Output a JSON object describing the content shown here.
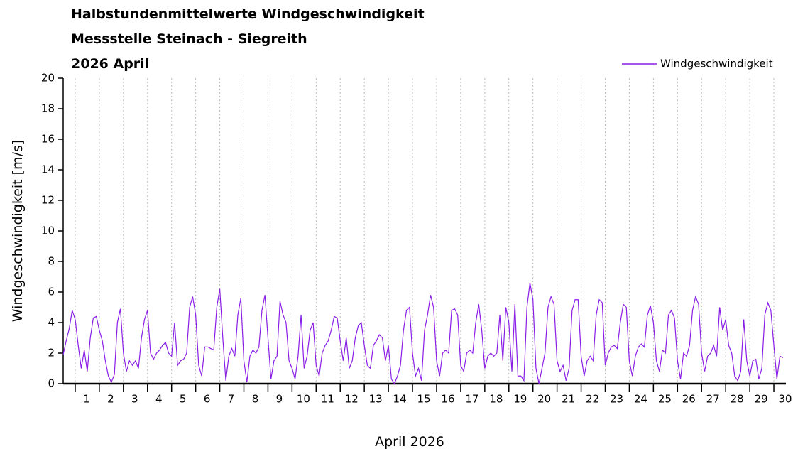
{
  "chart_data": {
    "type": "line",
    "title": [
      "Halbstundenmittelwerte Windgeschwindigkeit",
      "Messstelle Steinach - Siegreith",
      "2026 April"
    ],
    "xlabel": "April 2026",
    "ylabel": "Windgeschwindigkeit [m/s]",
    "xlim": [
      0.5,
      30.5
    ],
    "xticks": [
      1,
      2,
      3,
      4,
      5,
      6,
      7,
      8,
      9,
      10,
      11,
      12,
      13,
      14,
      15,
      16,
      17,
      18,
      19,
      20,
      21,
      22,
      23,
      24,
      25,
      26,
      27,
      28,
      29,
      30
    ],
    "ylim": [
      0,
      20
    ],
    "yticks": [
      0,
      2,
      4,
      6,
      8,
      10,
      12,
      14,
      16,
      18,
      20
    ],
    "grid": true,
    "legend": "upper right",
    "x": [
      0.5,
      0.625,
      0.75,
      0.875,
      1,
      1.125,
      1.25,
      1.375,
      1.5,
      1.625,
      1.75,
      1.875,
      2,
      2.125,
      2.25,
      2.375,
      2.5,
      2.625,
      2.75,
      2.875,
      3,
      3.125,
      3.25,
      3.375,
      3.5,
      3.625,
      3.75,
      3.875,
      4,
      4.125,
      4.25,
      4.375,
      4.5,
      4.625,
      4.75,
      4.875,
      5,
      5.125,
      5.25,
      5.375,
      5.5,
      5.625,
      5.75,
      5.875,
      6,
      6.125,
      6.25,
      6.375,
      6.5,
      6.625,
      6.75,
      6.875,
      7,
      7.125,
      7.25,
      7.375,
      7.5,
      7.625,
      7.75,
      7.875,
      8,
      8.125,
      8.25,
      8.375,
      8.5,
      8.625,
      8.75,
      8.875,
      9,
      9.125,
      9.25,
      9.375,
      9.5,
      9.625,
      9.75,
      9.875,
      10,
      10.125,
      10.25,
      10.375,
      10.5,
      10.625,
      10.75,
      10.875,
      11,
      11.125,
      11.25,
      11.375,
      11.5,
      11.625,
      11.75,
      11.875,
      12,
      12.125,
      12.25,
      12.375,
      12.5,
      12.625,
      12.75,
      12.875,
      13,
      13.125,
      13.25,
      13.375,
      13.5,
      13.625,
      13.75,
      13.875,
      14,
      14.125,
      14.25,
      14.375,
      14.5,
      14.625,
      14.75,
      14.875,
      15,
      15.125,
      15.25,
      15.375,
      15.5,
      15.625,
      15.75,
      15.875,
      16,
      16.125,
      16.25,
      16.375,
      16.5,
      16.625,
      16.75,
      16.875,
      17,
      17.125,
      17.25,
      17.375,
      17.5,
      17.625,
      17.75,
      17.875,
      18,
      18.125,
      18.25,
      18.375,
      18.5,
      18.625,
      18.75,
      18.875,
      19,
      19.125,
      19.25,
      19.375,
      19.5,
      19.625,
      19.75,
      19.875,
      20,
      20.125,
      20.25,
      20.375,
      20.5,
      20.625,
      20.75,
      20.875,
      21,
      21.125,
      21.25,
      21.375,
      21.5,
      21.625,
      21.75,
      21.875,
      22,
      22.125,
      22.25,
      22.375,
      22.5,
      22.625,
      22.75,
      22.875,
      23,
      23.125,
      23.25,
      23.375,
      23.5,
      23.625,
      23.75,
      23.875,
      24,
      24.125,
      24.25,
      24.375,
      24.5,
      24.625,
      24.75,
      24.875,
      25,
      25.125,
      25.25,
      25.375,
      25.5,
      25.625,
      25.75,
      25.875,
      26,
      26.125,
      26.25,
      26.375,
      26.5,
      26.625,
      26.75,
      26.875,
      27,
      27.125,
      27.25,
      27.375,
      27.5,
      27.625,
      27.75,
      27.875,
      28,
      28.125,
      28.25,
      28.375,
      28.5,
      28.625,
      28.75,
      28.875,
      29,
      29.125,
      29.25,
      29.375,
      29.5,
      29.625,
      29.75,
      29.875,
      30,
      30.125,
      30.25,
      30.375
    ],
    "series": [
      {
        "name": "Windgeschwindigkeit",
        "color": "#8a1ee6",
        "values": [
          1.9,
          2.8,
          3.6,
          4.8,
          4.2,
          2.5,
          1.0,
          2.2,
          0.8,
          3.0,
          4.3,
          4.4,
          3.5,
          2.8,
          1.5,
          0.5,
          0.1,
          0.6,
          4.0,
          4.9,
          2.0,
          0.8,
          1.5,
          1.2,
          1.5,
          1.0,
          3.0,
          4.2,
          4.8,
          2.0,
          1.6,
          2.0,
          2.2,
          2.5,
          2.7,
          2.0,
          1.8,
          4.0,
          1.2,
          1.5,
          1.6,
          2.0,
          5.0,
          5.7,
          4.5,
          1.2,
          0.5,
          2.4,
          2.4,
          2.3,
          2.2,
          5.0,
          6.2,
          3.0,
          0.2,
          1.8,
          2.3,
          1.8,
          4.5,
          5.6,
          1.5,
          0.1,
          1.8,
          2.2,
          2.0,
          2.4,
          4.8,
          5.8,
          3.0,
          0.3,
          1.5,
          1.8,
          5.4,
          4.5,
          4.0,
          1.5,
          1.0,
          0.3,
          1.8,
          4.5,
          1.0,
          1.8,
          3.5,
          4.0,
          1.2,
          0.5,
          2.0,
          2.5,
          2.8,
          3.5,
          4.4,
          4.3,
          2.8,
          1.5,
          3.0,
          1.0,
          1.5,
          3.0,
          3.8,
          4.0,
          2.5,
          1.2,
          1.0,
          2.5,
          2.8,
          3.2,
          3.0,
          1.5,
          2.5,
          0.3,
          0.0,
          0.5,
          1.2,
          3.5,
          4.8,
          5.0,
          2.0,
          0.5,
          1.0,
          0.2,
          3.5,
          4.5,
          5.8,
          5.0,
          1.5,
          0.5,
          2.0,
          2.2,
          2.0,
          4.8,
          4.9,
          4.5,
          1.2,
          0.8,
          2.0,
          2.2,
          2.0,
          4.0,
          5.2,
          3.5,
          1.0,
          1.8,
          2.0,
          1.8,
          2.0,
          4.5,
          1.5,
          5.0,
          4.0,
          0.8,
          5.2,
          0.5,
          0.5,
          0.2,
          5.0,
          6.6,
          5.5,
          1.0,
          0.0,
          1.0,
          2.0,
          5.0,
          5.7,
          5.2,
          1.5,
          0.8,
          1.2,
          0.2,
          1.0,
          4.8,
          5.5,
          5.5,
          1.8,
          0.5,
          1.5,
          1.8,
          1.5,
          4.5,
          5.5,
          5.3,
          1.2,
          2.0,
          2.4,
          2.5,
          2.3,
          4.0,
          5.2,
          5.0,
          1.5,
          0.5,
          1.8,
          2.4,
          2.6,
          2.4,
          4.5,
          5.1,
          4.0,
          1.5,
          0.8,
          2.2,
          2.0,
          4.5,
          4.8,
          4.3,
          1.5,
          0.3,
          2.0,
          1.8,
          2.5,
          4.8,
          5.7,
          5.2,
          2.0,
          0.8,
          1.8,
          2.0,
          2.5,
          1.8,
          5.0,
          3.5,
          4.2,
          2.5,
          2.0,
          0.5,
          0.2,
          0.8,
          4.2,
          1.5,
          0.5,
          1.5,
          1.6,
          0.3,
          1.0,
          4.5,
          5.3,
          4.8,
          2.5,
          0.3,
          1.8,
          1.7
        ]
      }
    ]
  }
}
